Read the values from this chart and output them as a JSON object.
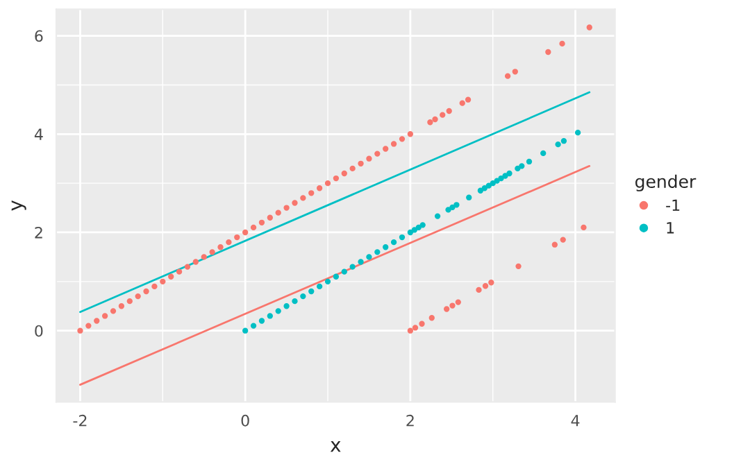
{
  "chart_data": {
    "type": "scatter",
    "xlabel": "x",
    "ylabel": "y",
    "legend_title": "gender",
    "legend": "right",
    "grid": true,
    "xlim": [
      -2.29,
      4.48
    ],
    "ylim": [
      -1.45,
      6.54
    ],
    "xticks": [
      -2,
      0,
      2,
      4
    ],
    "yticks": [
      0,
      2,
      4,
      6
    ],
    "series": [
      {
        "name": "-1",
        "marker": "circle",
        "color": "#f8766d",
        "x": [
          -2.0,
          -1.9,
          -1.8,
          -1.7,
          -1.6,
          -1.5,
          -1.4,
          -1.3,
          -1.2,
          -1.1,
          -1.0,
          -0.9,
          -0.8,
          -0.7,
          -0.6,
          -0.5,
          -0.4,
          -0.3,
          -0.2,
          -0.1,
          0.0,
          0.1,
          0.2,
          0.3,
          0.4,
          0.5,
          0.6,
          0.7,
          0.8,
          0.9,
          1.0,
          1.1,
          1.2,
          1.3,
          1.4,
          1.5,
          1.6,
          1.7,
          1.8,
          1.9,
          2.0,
          2.24,
          2.3,
          2.39,
          2.47,
          2.63,
          2.7,
          3.18,
          3.27,
          3.67,
          3.84,
          4.17,
          2.0,
          2.06,
          2.14,
          2.26,
          2.44,
          2.51,
          2.58,
          2.83,
          2.91,
          2.98,
          3.31,
          3.75,
          3.85,
          4.1
        ],
        "values": [
          0.0,
          0.1,
          0.2,
          0.3,
          0.4,
          0.5,
          0.6,
          0.7,
          0.8,
          0.9,
          1.0,
          1.1,
          1.2,
          1.3,
          1.4,
          1.5,
          1.6,
          1.7,
          1.8,
          1.9,
          2.0,
          2.1,
          2.2,
          2.3,
          2.4,
          2.5,
          2.6,
          2.7,
          2.8,
          2.9,
          3.0,
          3.1,
          3.2,
          3.3,
          3.4,
          3.5,
          3.6,
          3.7,
          3.8,
          3.9,
          4.0,
          4.24,
          4.3,
          4.39,
          4.47,
          4.63,
          4.7,
          5.18,
          5.27,
          5.67,
          5.84,
          6.17,
          0.0,
          0.06,
          0.14,
          0.26,
          0.44,
          0.51,
          0.58,
          0.83,
          0.91,
          0.98,
          1.31,
          1.75,
          1.85,
          2.1
        ]
      },
      {
        "name": "1",
        "marker": "circle",
        "color": "#00bfc4",
        "x": [
          0.0,
          0.1,
          0.2,
          0.3,
          0.4,
          0.5,
          0.6,
          0.7,
          0.8,
          0.9,
          1.0,
          1.1,
          1.2,
          1.3,
          1.4,
          1.5,
          1.6,
          1.7,
          1.8,
          1.9,
          2.0,
          2.05,
          2.1,
          2.15,
          2.33,
          2.46,
          2.51,
          2.56,
          2.71,
          2.85,
          2.9,
          2.95,
          3.0,
          3.05,
          3.1,
          3.15,
          3.2,
          3.3,
          3.35,
          3.44,
          3.61,
          3.79,
          3.86,
          4.03
        ],
        "values": [
          0.0,
          0.1,
          0.2,
          0.3,
          0.4,
          0.5,
          0.6,
          0.7,
          0.8,
          0.9,
          1.0,
          1.1,
          1.2,
          1.3,
          1.4,
          1.5,
          1.6,
          1.7,
          1.8,
          1.9,
          2.0,
          2.05,
          2.1,
          2.15,
          2.33,
          2.46,
          2.51,
          2.56,
          2.71,
          2.85,
          2.9,
          2.95,
          3.0,
          3.05,
          3.1,
          3.15,
          3.2,
          3.3,
          3.35,
          3.44,
          3.61,
          3.79,
          3.86,
          4.03
        ]
      },
      {
        "type": "line",
        "color": "#f8766d",
        "x": [
          -2.0,
          4.17
        ],
        "values": [
          -1.1,
          3.35
        ]
      },
      {
        "type": "line",
        "color": "#00bfc4",
        "x": [
          -2.0,
          4.17
        ],
        "values": [
          0.38,
          4.85
        ]
      }
    ]
  }
}
